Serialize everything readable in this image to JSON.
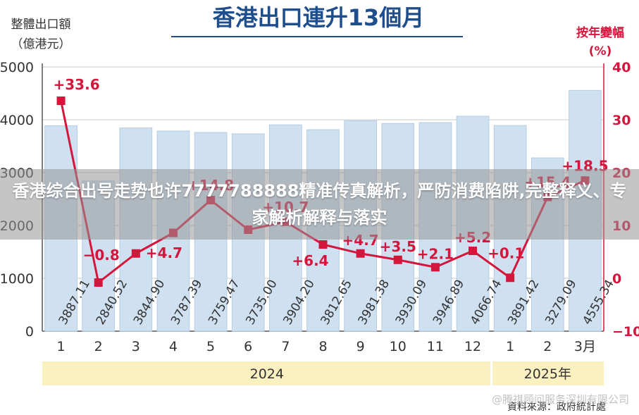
{
  "chart_data": {
    "type": "bar+line",
    "title": "香港出口連升13個月",
    "left_axis_label": [
      "整體出口額",
      "（億港元）"
    ],
    "right_axis_label": [
      "按年變幅",
      "(%)"
    ],
    "left_ticks": [
      "5000",
      "4000",
      "3000",
      "2000",
      "1000",
      "0"
    ],
    "right_ticks": [
      "40",
      "30",
      "20",
      "10",
      "0",
      "−10"
    ],
    "ylim_left": [
      0,
      5000
    ],
    "ylim_right": [
      -10,
      40
    ],
    "categories": [
      "1",
      "2",
      "3",
      "4",
      "5",
      "6",
      "7",
      "8",
      "9",
      "10",
      "11",
      "12",
      "1",
      "2",
      "3月"
    ],
    "years": [
      {
        "label": "2024",
        "span": 12
      },
      {
        "label": "2025年",
        "span": 3
      }
    ],
    "series": [
      {
        "kind": "bar",
        "values": [
          3887.11,
          2840.52,
          3844.9,
          3787.39,
          3759.47,
          3735.0,
          3904.2,
          3812.65,
          3981.38,
          3930.09,
          3946.89,
          4066.74,
          3891.42,
          3279.09,
          4555.34
        ],
        "labels": [
          "3887.11",
          "2840.52",
          "3844.90",
          "3787.39",
          "3759.47",
          "3735.00",
          "3904.20",
          "3812.65",
          "3981.38",
          "3930.09",
          "3946.89",
          "4066.74",
          "3891.42",
          "3279.09",
          "4555.34"
        ]
      },
      {
        "kind": "line",
        "values": [
          33.6,
          -0.8,
          4.7,
          8.6,
          14.8,
          9.2,
          10.7,
          6.4,
          4.7,
          3.5,
          2.1,
          5.2,
          0.1,
          15.4,
          18.5
        ],
        "labels": [
          "+33.6",
          "−0.8",
          "+4.7",
          "",
          "+14.8",
          "",
          "+10.7",
          "+6.4",
          "+4.7",
          "+3.5",
          "+2.1",
          "+5.2",
          "+0.1",
          "+15.4",
          "+18.5"
        ]
      }
    ]
  },
  "colors": {
    "bar": "#cfe0f1",
    "bar_stroke": "#b4cde6",
    "line": "#d4163c",
    "text": "#333333",
    "title": "#1f4e8c",
    "right_axis": "#d4163c",
    "year_band": "#fbf0c0"
  },
  "overlay_text": "香港综合出号走势也许7777788888精准传真解析，严防消费陷阱,完整释义、专家解析解释与落实",
  "watermark_text": "@腾祺顾问服务深圳有限公司",
  "source_text": "資料來源：政府統計處"
}
